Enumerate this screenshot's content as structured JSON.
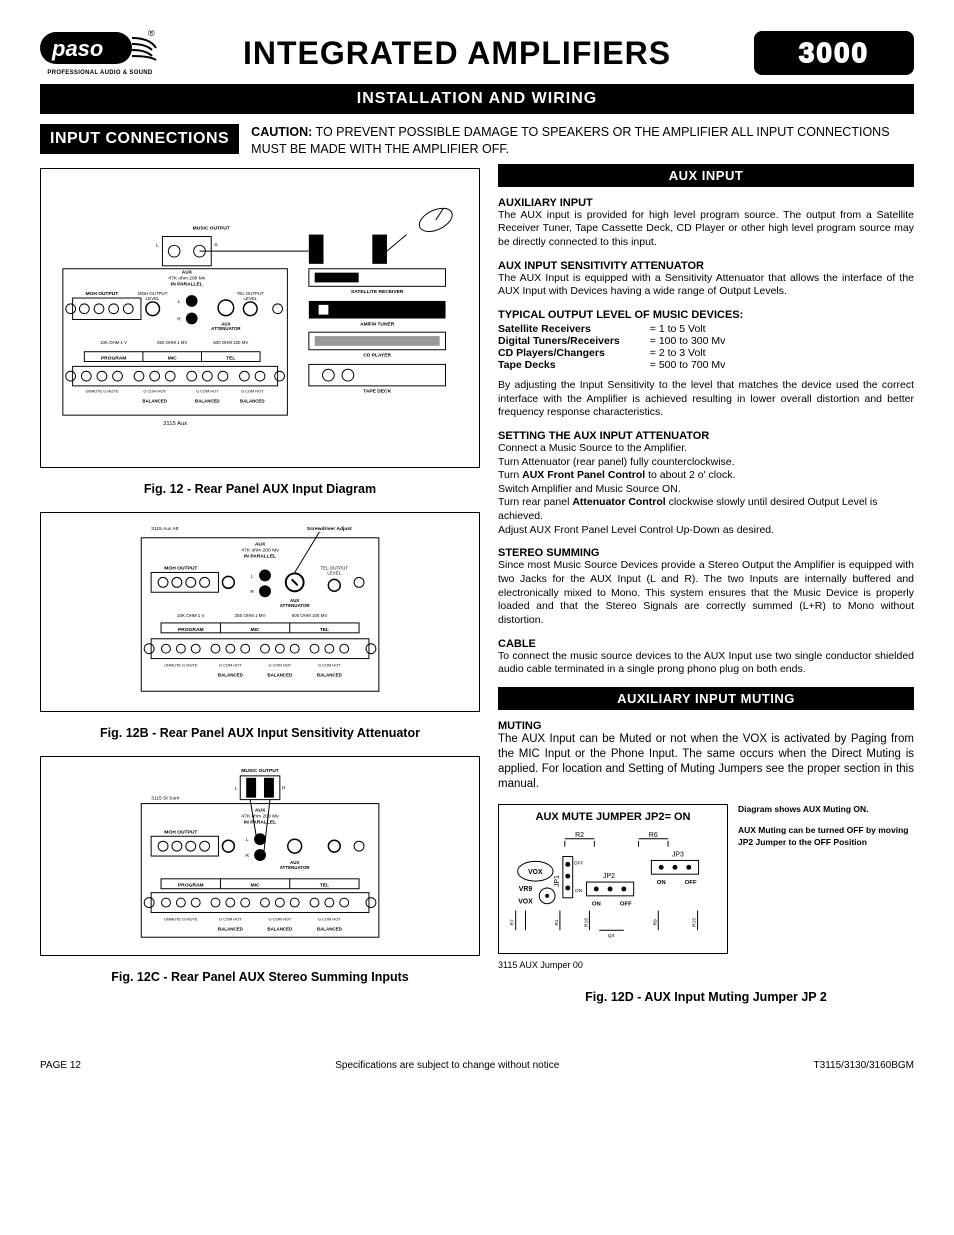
{
  "colors": {
    "black": "#000000",
    "white": "#ffffff"
  },
  "header": {
    "logo_text": "paso",
    "logo_sub": "PROFESSIONAL AUDIO & SOUND",
    "title": "INTEGRATED AMPLIFIERS",
    "model": "3000"
  },
  "section_bar": "INSTALLATION AND WIRING",
  "input_connections_chip": "INPUT CONNECTIONS",
  "caution": {
    "label": "CAUTION:",
    "text": "TO PREVENT POSSIBLE DAMAGE TO SPEAKERS OR THE AMPLIFIER ALL INPUT CONNECTIONS MUST BE MADE WITH THE AMPLIFIER OFF."
  },
  "figs": {
    "f12": "Fig. 12 - Rear Panel AUX Input Diagram",
    "f12b": "Fig. 12B - Rear Panel AUX Input Sensitivity Attenuator",
    "f12c": "Fig. 12C - Rear Panel AUX Stereo Summing Inputs",
    "f12d": "Fig. 12D -  AUX Input Muting Jumper JP 2"
  },
  "diagram_labels": {
    "music_output": "MUSIC OUTPUT",
    "l": "L",
    "r": "R",
    "aux_text": "AUX",
    "aux_imp": "47K ohm 200 Mv",
    "in_parallel": "IN PARALLEL",
    "moh_output": "MOH   OUTPUT",
    "moh_left": "600 ohm\n1 Volt",
    "moh_right": "8 OHM\n1 WATT",
    "moh_output_level": "MOH OUTPUT\nLEVEL",
    "tel_output_level": "TEL OUTPUT\nLEVEL",
    "aux_attenuator": "AUX\nATTENUATOR",
    "r1": "10K OHM\n1 V",
    "r2": "250 OHM\n1 MV",
    "r3": "600 OHM\n100 MV",
    "program": "PROGRAM",
    "mic": "MIC",
    "tel": "TEL",
    "unmute": "UNMUTE  G  MUTE",
    "gcomhot": "G  COM  HOT",
    "balanced": "BALANCED",
    "model_ref": "3115 Aux",
    "model_ref_b": "3115 Aux Att",
    "model_ref_c": "3115 St Sum",
    "screwdriver": "Screwdriver Adjust",
    "sat": "SATELLITE RECEIVER",
    "tuner": "AM/FM TUNER",
    "cd": "CD PLAYER",
    "tape": "TAPE DECK"
  },
  "aux_input": {
    "bar": "AUX INPUT",
    "h1": "AUXILIARY INPUT",
    "p1": "The AUX input is provided for high level program source. The output from a Satellite Receiver Tuner, Tape Cassette Deck, CD Player or other high level program source may be directly connected to this input.",
    "h2": "AUX INPUT SENSITIVITY ATTENUATOR",
    "p2": "The AUX Input is equipped with a Sensitivity Attenuator that allows the interface of the AUX Input with Devices having a wide range of Output Levels.",
    "h3": "TYPICAL OUTPUT LEVEL OF MUSIC DEVICES:",
    "devices": [
      {
        "name": "Satellite Receivers",
        "val": "= 1 to 5 Volt"
      },
      {
        "name": "Digital Tuners/Receivers",
        "val": "= 100 to 300 Mv"
      },
      {
        "name": "CD Players/Changers",
        "val": "= 2 to 3 Volt"
      },
      {
        "name": "Tape Decks",
        "val": "= 500 to 700 Mv"
      }
    ],
    "p3": "By adjusting the Input Sensitivity to the level that matches the device used the correct interface with the Amplifier is achieved resulting in lower overall distortion and better frequency response characteristics.",
    "h4": "SETTING THE AUX INPUT ATTENUATOR",
    "set_lines": [
      "Connect a Music Source to the Amplifier.",
      "Turn Attenuator (rear panel) fully counterclockwise.",
      "Turn <b>AUX Front Panel Control</b> to about 2 o' clock.",
      "Switch Amplifier and Music Source ON.",
      "Turn rear panel <b>Attenuator Control</b> clockwise slowly until desired Output Level is achieved.",
      "Adjust AUX Front Panel Level Control Up-Down as desired."
    ],
    "h5": "STEREO SUMMING",
    "p5": "Since most Music Source Devices provide a Stereo Output the Amplifier is equipped with two Jacks for the AUX Input (L and R). The two Inputs are internally buffered and electronically mixed to Mono. This system ensures that the Music Device is properly loaded and that the Stereo Signals are correctly summed (L+R) to Mono without distortion.",
    "h6": "CABLE",
    "p6": "To connect the music source devices to the AUX Input use two single conductor shielded audio cable terminated in a single prong phono plug on both ends."
  },
  "aux_muting": {
    "bar": "AUXILIARY INPUT MUTING",
    "h1": "MUTING",
    "p1": "The AUX Input can be Muted or not when the VOX is activated by Paging from the MIC Input or the Phone Input. The same occurs when the Direct Muting is applied. For location and Setting of Muting Jumpers see the proper section in this manual.",
    "jumper_title": "AUX MUTE JUMPER JP2= ON",
    "jumper_labels": {
      "vox": "VOX",
      "vr9": "VR9",
      "on": "ON",
      "off": "OFF",
      "jp1": "JP1",
      "jp2": "JP2",
      "jp3": "JP3",
      "r2": "R2",
      "r6": "R6",
      "r7": "R7",
      "r1": "R1",
      "r16": "R16",
      "q4": "Q4",
      "r9": "R9",
      "r15": "R15"
    },
    "side_text1": "Diagram shows AUX Muting ON.",
    "side_text2": "AUX Muting can be turned OFF by moving JP2 Jumper to the OFF Position",
    "ref": "3115 AUX Jumper 00"
  },
  "footer": {
    "left": "PAGE 12",
    "mid": "Specifications are subject to change without notice",
    "right": "T3115/3130/3160BGM"
  }
}
